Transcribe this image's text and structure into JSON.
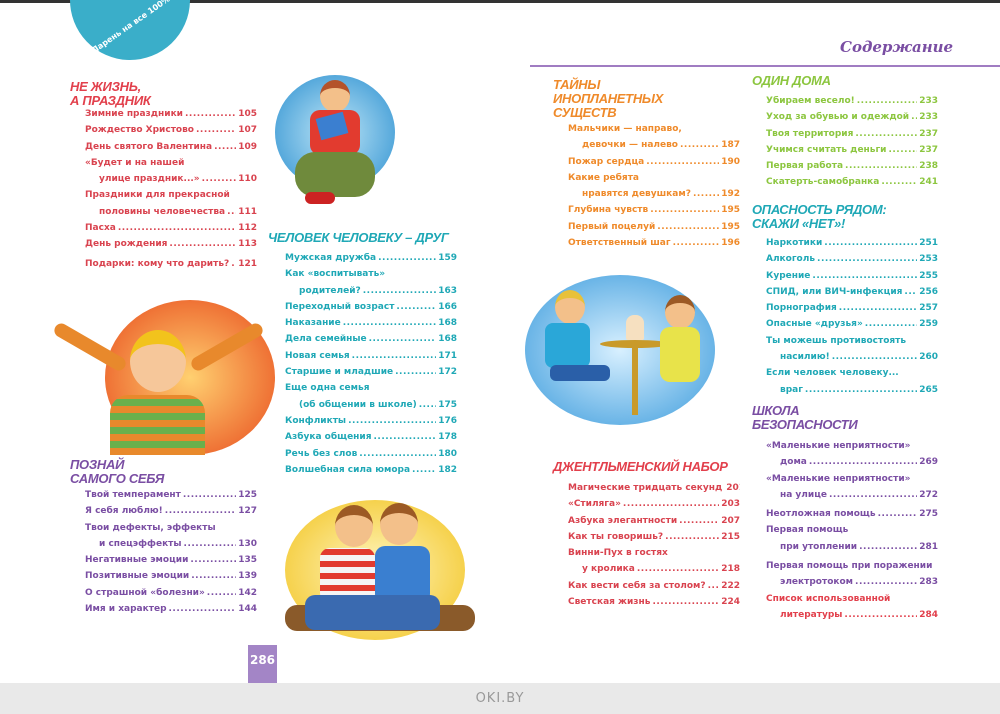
{
  "badge": "Парень на все 100%",
  "contents_title": "Содержание",
  "page_number": "286",
  "watermark": "OKI.BY",
  "colors": {
    "red": "#e2404c",
    "purple": "#7a4ea3",
    "teal": "#1fa8b6",
    "orange": "#ef8a2a",
    "green": "#8cc63f"
  },
  "sections": [
    {
      "title": [
        "Не жизнь,",
        "а праздник"
      ],
      "entries": [
        {
          "l1": "Зимние праздники",
          "page": "105"
        },
        {
          "l1": "Рождество Христово",
          "page": "107"
        },
        {
          "l1": "День святого Валентина",
          "page": "109"
        },
        {
          "l1": "«Будет и на нашей",
          "l2": "улице праздник...»",
          "page": "110"
        },
        {
          "l1": "Праздники для прекрасной",
          "l2": "половины человечества",
          "page": "111"
        },
        {
          "l1": "Пасха",
          "page": "112"
        },
        {
          "l1": "День рождения",
          "page": "113"
        },
        {
          "l1": "Подарки:  кому что дарить?",
          "page": "121"
        }
      ]
    },
    {
      "title": [
        "Познай",
        "самого себя"
      ],
      "entries": [
        {
          "l1": "Твой темперамент",
          "page": "125"
        },
        {
          "l1": "Я себя люблю!",
          "page": "127"
        },
        {
          "l1": "Твои дефекты, эффекты",
          "l2": "и спецэффекты",
          "page": "130"
        },
        {
          "l1": "Негативные эмоции",
          "page": "135"
        },
        {
          "l1": "Позитивные эмоции",
          "page": "139"
        },
        {
          "l1": "О страшной «болезни»",
          "page": "142"
        },
        {
          "l1": "Имя и характер",
          "page": "144"
        }
      ]
    },
    {
      "title": [
        "Человек человеку – друг"
      ],
      "entries": [
        {
          "l1": "Мужская дружба",
          "page": "159"
        },
        {
          "l1": "Как «воспитывать»",
          "l2": "родителей?",
          "page": "163"
        },
        {
          "l1": "Переходный возраст",
          "page": "166"
        },
        {
          "l1": "Наказание",
          "page": "168"
        },
        {
          "l1": "Дела семейные",
          "page": "168"
        },
        {
          "l1": "Новая семья",
          "page": "171"
        },
        {
          "l1": "Старшие и младшие",
          "page": "172"
        },
        {
          "l1": "Еще одна семья",
          "l2": "(об общении в школе)",
          "page": "175"
        },
        {
          "l1": "Конфликты",
          "page": "176"
        },
        {
          "l1": "Азбука общения",
          "page": "178"
        },
        {
          "l1": "Речь без слов",
          "page": "180"
        },
        {
          "l1": "Волшебная сила юмора",
          "page": "182"
        }
      ]
    },
    {
      "title": [
        "Тайны",
        "инопланетных",
        "существ"
      ],
      "entries": [
        {
          "l1": "Мальчики — направо,",
          "l2": "девочки — налево",
          "page": "187"
        },
        {
          "l1": "Пожар сердца",
          "page": "190"
        },
        {
          "l1": "Какие ребята",
          "l2": "нравятся девушкам?",
          "page": "192"
        },
        {
          "l1": "Глубина чувств",
          "page": "195"
        },
        {
          "l1": "Первый поцелуй",
          "page": "195"
        },
        {
          "l1": "Ответственный шаг",
          "page": "196"
        }
      ]
    },
    {
      "title": [
        "Джентльменский набор"
      ],
      "entries": [
        {
          "l1": "Магические тридцать секунд",
          "page": "201"
        },
        {
          "l1": "«Стиляга»",
          "page": "203"
        },
        {
          "l1": "Азбука элегантности",
          "page": "207"
        },
        {
          "l1": "Как ты говоришь?",
          "page": "215"
        },
        {
          "l1": "Винни-Пух в гостях",
          "l2": "у кролика",
          "page": "218"
        },
        {
          "l1": "Как вести себя за столом?",
          "page": "222"
        },
        {
          "l1": "Светская жизнь",
          "page": "224"
        }
      ]
    },
    {
      "title": [
        "Один дома"
      ],
      "entries": [
        {
          "l1": "Убираем весело!",
          "page": "233"
        },
        {
          "l1": "Уход за обувью и одеждой",
          "page": "233"
        },
        {
          "l1": "Твоя территория",
          "page": "237"
        },
        {
          "l1": "Учимся считать деньги",
          "page": "237"
        },
        {
          "l1": "Первая работа",
          "page": "238"
        },
        {
          "l1": "Скатерть-самобранка",
          "page": "241"
        }
      ]
    },
    {
      "title": [
        "Опасность рядом:",
        "скажи «нет»!"
      ],
      "entries": [
        {
          "l1": "Наркотики",
          "page": "251"
        },
        {
          "l1": "Алкоголь",
          "page": "253"
        },
        {
          "l1": "Курение",
          "page": "255"
        },
        {
          "l1": "СПИД, или ВИЧ-инфекция",
          "page": "256"
        },
        {
          "l1": "Порнография",
          "page": "257"
        },
        {
          "l1": "Опасные «друзья»",
          "page": "259"
        },
        {
          "l1": "Ты можешь противостоять",
          "l2": "насилию!",
          "page": "260"
        },
        {
          "l1": "Если человек человеку...",
          "l2": "враг",
          "page": "265"
        }
      ]
    },
    {
      "title": [
        "Школа",
        "безопасности"
      ],
      "entries": [
        {
          "l1": "«Маленькие неприятности»",
          "l2": "дома",
          "page": "269"
        },
        {
          "l1": "«Маленькие неприятности»",
          "l2": "на улице",
          "page": "272"
        },
        {
          "l1": "Неотложная помощь",
          "page": "275"
        },
        {
          "l1": "Первая помощь",
          "l2": "при утоплении",
          "page": "281"
        },
        {
          "l1": "Первая помощь при поражении",
          "l2": "электротоком",
          "page": "283"
        },
        {
          "l1": "Список использованной",
          "l2": "литературы",
          "page": "284"
        }
      ]
    }
  ]
}
